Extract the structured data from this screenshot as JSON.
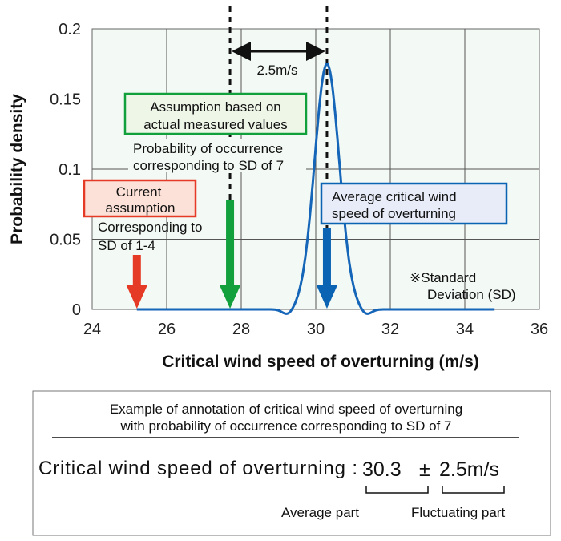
{
  "chart_data": {
    "type": "line",
    "xlabel": "Critical wind speed of overturning (m/s)",
    "ylabel": "Probability density",
    "xlim": [
      24,
      36
    ],
    "ylim": [
      0,
      0.2
    ],
    "xticks": [
      "24",
      "26",
      "28",
      "30",
      "32",
      "34",
      "36"
    ],
    "yticks": [
      "0",
      "0.05",
      "0.1",
      "0.15",
      "0.2"
    ],
    "grid": true,
    "series": [
      {
        "type": "normal-distribution-curve",
        "mean": 30.3,
        "peak": 0.175,
        "x_range": [
          25.2,
          34.8
        ],
        "color": "#1565b8"
      }
    ],
    "colors": {
      "plot_background": "#f3f9f4",
      "current": "#e53a25",
      "measured": "#12a03c",
      "average": "#0b63b3"
    },
    "markers": [
      {
        "x": 25.2,
        "color": "#e53a25"
      },
      {
        "x": 27.7,
        "color": "#12a03c"
      },
      {
        "x": 30.3,
        "color": "#0b63b3"
      }
    ],
    "span_label": "2.5m/s",
    "annotations": {
      "current_box": [
        "Current",
        "assumption"
      ],
      "current_note": [
        "Corresponding to",
        "SD of 1-4"
      ],
      "measured_box": [
        "Assumption based on",
        "actual measured values"
      ],
      "measured_note": [
        "Probability of occurrence",
        "corresponding to SD of 7"
      ],
      "average_box": [
        "Average critical wind",
        "speed of overturning"
      ],
      "sd_note": [
        "※Standard",
        "Deviation (SD)"
      ]
    }
  },
  "example": {
    "title": [
      "Example of annotation of critical wind speed of overturning",
      "with probability of occurrence corresponding to SD of 7"
    ],
    "label": "Critical wind speed of overturning :",
    "average": "30.3",
    "pm": "±",
    "fluct": "2.5m/s",
    "average_part": "Average part",
    "fluct_part": "Fluctuating part"
  }
}
